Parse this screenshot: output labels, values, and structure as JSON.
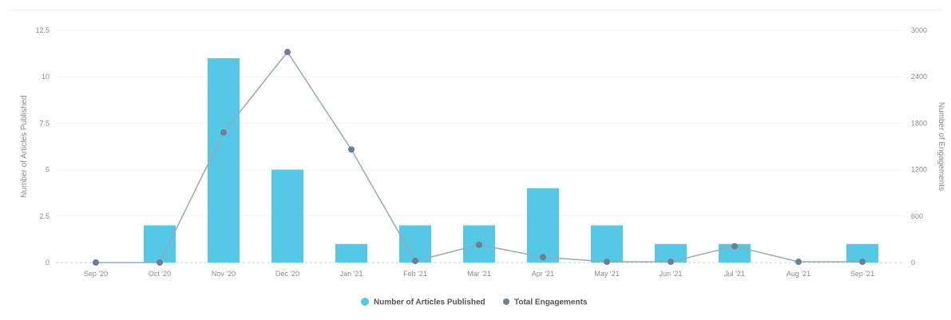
{
  "chart_data": {
    "type": "bar+line",
    "categories": [
      "Sep '20",
      "Oct '20",
      "Nov '20",
      "Dec '20",
      "Jan '21",
      "Feb '21",
      "Mar '21",
      "Apr '21",
      "May '21",
      "Jun '21",
      "Jul '21",
      "Aug '21",
      "Sep '21"
    ],
    "series": [
      {
        "name": "Number of Articles Published",
        "type": "bar",
        "axis": "left",
        "color": "#55c8e6",
        "values": [
          0,
          2,
          11,
          5,
          1,
          2,
          2,
          4,
          2,
          1,
          1,
          0,
          1
        ]
      },
      {
        "name": "Total Engagements",
        "type": "line",
        "axis": "right",
        "color": "#6b7f96",
        "values": [
          0,
          0,
          1680,
          2720,
          1460,
          20,
          230,
          70,
          10,
          10,
          210,
          10,
          10
        ]
      }
    ],
    "ylabel": "Number of Articles Published",
    "ylabel_right": "Number of Engagements",
    "ylim": [
      0,
      12.5
    ],
    "ylim_right": [
      0,
      3000
    ],
    "yticks": [
      "12.5",
      "10",
      "7.5",
      "5",
      "2.5",
      "0"
    ],
    "yticks_right": [
      "3000",
      "2400",
      "1800",
      "1200",
      "600",
      "0"
    ],
    "grid": true,
    "legend": "bottom-center"
  }
}
